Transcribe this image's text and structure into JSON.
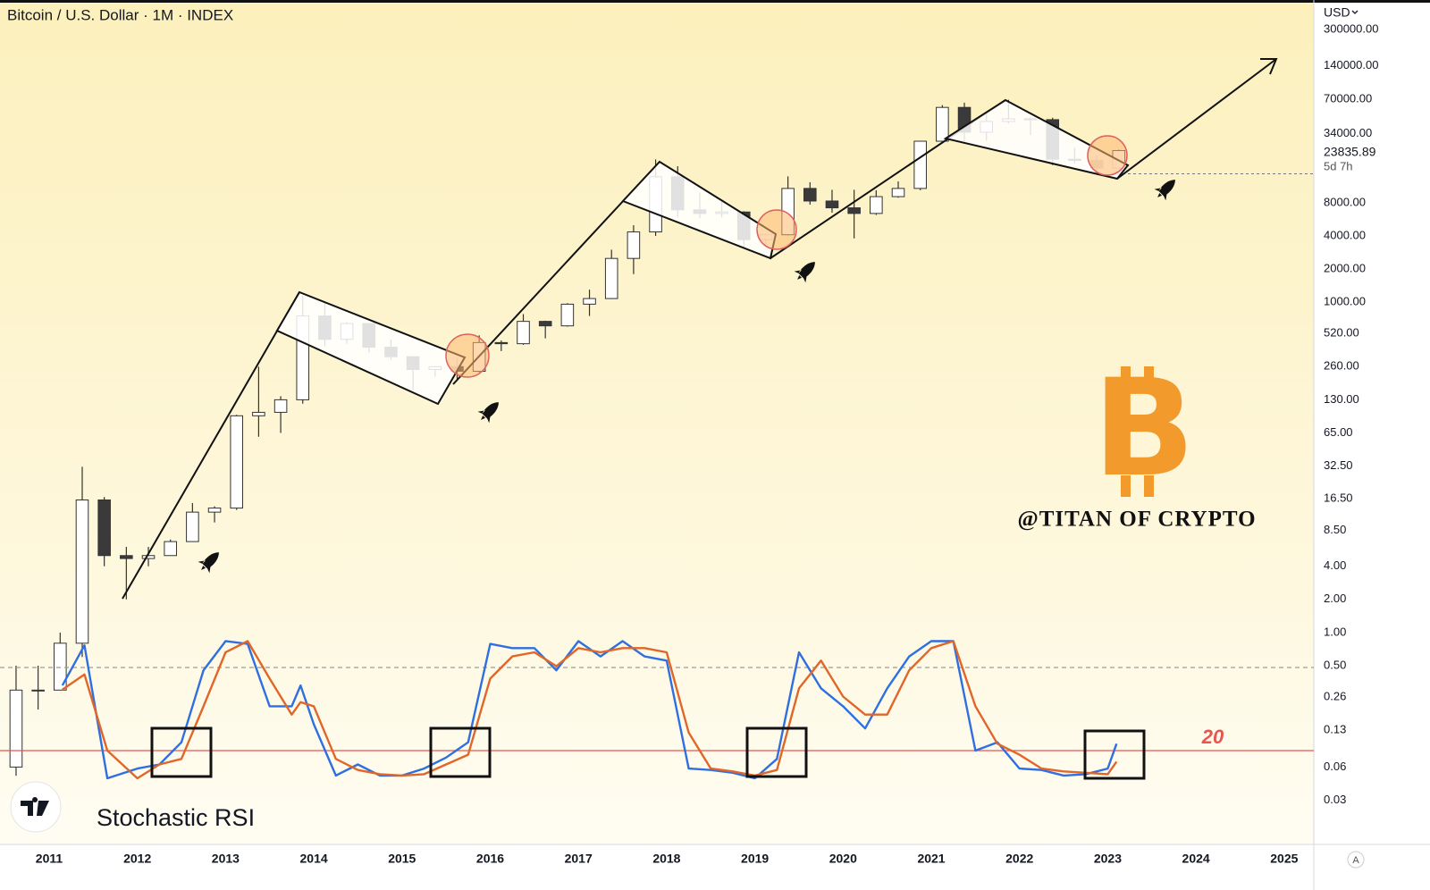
{
  "chart_data": {
    "type": "candlestick",
    "title": "Bitcoin / U.S. Dollar · 1M · INDEX",
    "currency": "USD",
    "x": [
      2010.5,
      2010.75,
      2011.0,
      2011.25,
      2011.5,
      2011.75,
      2012.0,
      2012.25,
      2012.5,
      2012.75,
      2013.0,
      2013.25,
      2013.5,
      2013.75,
      2014.0,
      2014.25,
      2014.5,
      2014.75,
      2015.0,
      2015.25,
      2015.5,
      2015.75,
      2016.0,
      2016.25,
      2016.5,
      2016.75,
      2017.0,
      2017.25,
      2017.5,
      2017.75,
      2018.0,
      2018.25,
      2018.5,
      2018.75,
      2019.0,
      2019.25,
      2019.5,
      2019.75,
      2020.0,
      2020.25,
      2020.5,
      2020.75,
      2021.0,
      2021.25,
      2021.5,
      2021.75,
      2022.0,
      2022.25,
      2022.5,
      2022.75,
      2023.0
    ],
    "open": [
      0.06,
      0.3,
      0.3,
      0.8,
      16,
      5,
      4.7,
      5,
      6.7,
      12.4,
      13.5,
      93,
      100,
      130,
      750,
      460,
      640,
      390,
      320,
      245,
      260,
      236,
      430,
      420,
      670,
      610,
      960,
      1080,
      2500,
      4350,
      13800,
      6900,
      6400,
      6600,
      3700,
      4100,
      10800,
      8300,
      7200,
      6400,
      9100,
      10800,
      29000,
      58800,
      35000,
      43800,
      46300,
      45500,
      19900,
      19400,
      16500
    ],
    "high": [
      0.5,
      0.5,
      1.0,
      32,
      17,
      6,
      6,
      7,
      15,
      14,
      95,
      260,
      140,
      1150,
      1000,
      660,
      650,
      460,
      320,
      260,
      310,
      500,
      450,
      780,
      680,
      980,
      1300,
      3000,
      5000,
      19800,
      17200,
      9900,
      8500,
      6700,
      4200,
      13900,
      12300,
      10500,
      10500,
      10400,
      12500,
      29300,
      61700,
      64900,
      52900,
      69000,
      48200,
      47400,
      25200,
      21400,
      24300
    ],
    "low": [
      0.05,
      0.2,
      0.3,
      0.6,
      4,
      2,
      4,
      5,
      6.7,
      10,
      13,
      60,
      65,
      120,
      400,
      420,
      350,
      300,
      160,
      210,
      200,
      230,
      360,
      410,
      470,
      600,
      750,
      1070,
      1800,
      4000,
      5900,
      5800,
      5900,
      3100,
      3350,
      4050,
      7700,
      6500,
      3800,
      6200,
      8900,
      10400,
      28000,
      28800,
      29300,
      42000,
      33000,
      17600,
      18200,
      15500,
      16500
    ],
    "close": [
      0.3,
      0.3,
      0.8,
      16,
      5,
      4.7,
      5,
      6.7,
      12.4,
      13.5,
      93,
      100,
      130,
      750,
      460,
      640,
      390,
      320,
      245,
      260,
      236,
      430,
      420,
      670,
      610,
      960,
      1080,
      2500,
      4350,
      13800,
      6900,
      6400,
      6600,
      3700,
      4100,
      10800,
      8300,
      7200,
      6400,
      9100,
      10800,
      29000,
      58800,
      35000,
      43800,
      46300,
      45500,
      19900,
      19400,
      16500,
      23835.89
    ],
    "up_color": "#ffffff",
    "down_color": "#3a3a3a",
    "wick_color": "#333333",
    "log_scale": true,
    "xlim": [
      2010.443,
      2025.336
    ],
    "xticks": [
      2011,
      2012,
      2013,
      2014,
      2015,
      2016,
      2017,
      2018,
      2019,
      2020,
      2021,
      2022,
      2023,
      2024,
      2025
    ],
    "ylim": [
      0.0119,
      555700
    ],
    "yticks": [
      {
        "value": 300000,
        "label": "300000.00"
      },
      {
        "value": 140000,
        "label": "140000.00"
      },
      {
        "value": 70000,
        "label": "70000.00"
      },
      {
        "value": 34000,
        "label": "34000.00"
      },
      {
        "value": 8000,
        "label": "8000.00"
      },
      {
        "value": 4000,
        "label": "4000.00"
      },
      {
        "value": 2000,
        "label": "2000.00"
      },
      {
        "value": 1000,
        "label": "1000.00"
      },
      {
        "value": 520,
        "label": "520.00"
      },
      {
        "value": 260,
        "label": "260.00"
      },
      {
        "value": 130,
        "label": "130.00"
      },
      {
        "value": 65,
        "label": "65.00"
      },
      {
        "value": 32.5,
        "label": "32.50"
      },
      {
        "value": 16.5,
        "label": "16.50"
      },
      {
        "value": 8.5,
        "label": "8.50"
      },
      {
        "value": 4,
        "label": "4.00"
      },
      {
        "value": 2,
        "label": "2.00"
      },
      {
        "value": 1,
        "label": "1.00"
      },
      {
        "value": 0.5,
        "label": "0.50"
      },
      {
        "value": 0.26,
        "label": "0.26"
      },
      {
        "value": 0.13,
        "label": "0.13"
      },
      {
        "value": 0.06,
        "label": "0.06"
      },
      {
        "value": 0.03,
        "label": "0.03"
      }
    ],
    "grid": false,
    "last_price": 23835.89,
    "countdown": "5d 7h",
    "watermark": "@TITAN OF CRYPTO",
    "logo": "B",
    "indicator": {
      "type": "line",
      "name": "Stochastic RSI",
      "x": [
        2011.15,
        2011.4,
        2011.66,
        2012.0,
        2012.25,
        2012.5,
        2012.75,
        2013.0,
        2013.25,
        2013.5,
        2013.75,
        2013.85,
        2014.0,
        2014.25,
        2014.5,
        2014.75,
        2015.0,
        2015.25,
        2015.5,
        2015.75,
        2016.0,
        2016.25,
        2016.5,
        2016.75,
        2017.0,
        2017.25,
        2017.5,
        2017.75,
        2018.0,
        2018.25,
        2018.5,
        2018.75,
        2019.0,
        2019.25,
        2019.5,
        2019.75,
        2020.0,
        2020.25,
        2020.5,
        2020.75,
        2021.0,
        2021.25,
        2021.5,
        2021.75,
        2022.0,
        2022.25,
        2022.5,
        2022.75,
        2023.0,
        2023.1
      ],
      "series": [
        {
          "color": "#2f6fe0",
          "values": [
            67,
            96,
            0,
            7,
            10,
            26,
            78,
            99,
            97,
            52,
            52,
            67,
            39,
            2,
            10,
            2,
            2,
            7,
            15,
            26,
            97,
            94,
            94,
            78,
            99,
            88,
            99,
            88,
            85,
            7,
            6,
            4,
            0,
            14,
            91,
            65,
            52,
            36,
            65,
            88,
            99,
            99,
            20,
            26,
            7,
            6,
            2,
            3,
            7,
            25
          ]
        },
        {
          "color": "#e0662a",
          "values": [
            64,
            75,
            20,
            0,
            10,
            14,
            52,
            91,
            99,
            72,
            46,
            55,
            52,
            14,
            6,
            3,
            2,
            3,
            10,
            17,
            72,
            88,
            91,
            81,
            94,
            91,
            94,
            94,
            91,
            33,
            7,
            5,
            2,
            6,
            65,
            85,
            59,
            46,
            46,
            78,
            94,
            99,
            52,
            25,
            17,
            7,
            5,
            4,
            3,
            12
          ]
        }
      ],
      "ylim": [
        0,
        100
      ],
      "levels": [
        {
          "value": 80,
          "color": "#9a9a9a",
          "dash": true
        },
        {
          "value": 20,
          "color": "#e8554e",
          "dash": false
        }
      ]
    }
  }
}
